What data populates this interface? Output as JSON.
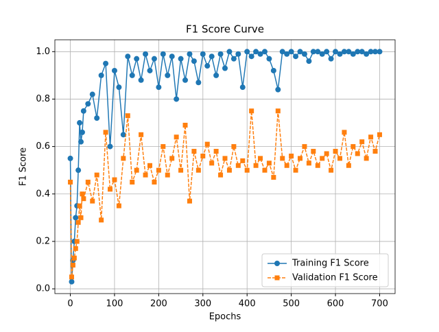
{
  "chart_data": {
    "type": "line",
    "title": "F1 Score Curve",
    "xlabel": "Epochs",
    "ylabel": "F1 Score",
    "x": [
      0,
      3,
      6,
      9,
      12,
      15,
      18,
      21,
      24,
      27,
      30,
      40,
      50,
      60,
      70,
      80,
      90,
      100,
      110,
      120,
      130,
      140,
      150,
      160,
      170,
      180,
      190,
      200,
      210,
      220,
      230,
      240,
      250,
      260,
      270,
      280,
      290,
      300,
      310,
      320,
      330,
      340,
      350,
      360,
      370,
      380,
      390,
      400,
      410,
      420,
      430,
      440,
      450,
      460,
      470,
      480,
      490,
      500,
      510,
      520,
      530,
      540,
      550,
      560,
      570,
      580,
      590,
      600,
      610,
      620,
      630,
      640,
      650,
      660,
      670,
      680,
      690,
      700
    ],
    "series": [
      {
        "name": "Training F1 Score",
        "color": "#1f77b4",
        "marker": "circle",
        "dashed": false,
        "values": [
          0.55,
          0.03,
          0.12,
          0.2,
          0.3,
          0.35,
          0.5,
          0.7,
          0.62,
          0.66,
          0.75,
          0.78,
          0.82,
          0.72,
          0.9,
          0.95,
          0.6,
          0.92,
          0.85,
          0.65,
          0.98,
          0.9,
          0.97,
          0.88,
          0.99,
          0.92,
          0.97,
          0.85,
          0.99,
          0.9,
          0.98,
          0.8,
          0.97,
          0.88,
          0.99,
          0.96,
          0.87,
          0.99,
          0.94,
          0.98,
          0.9,
          0.99,
          0.93,
          1.0,
          0.97,
          0.99,
          0.85,
          1.0,
          0.98,
          1.0,
          0.99,
          1.0,
          0.97,
          0.92,
          0.84,
          1.0,
          0.99,
          1.0,
          0.98,
          1.0,
          0.99,
          0.96,
          1.0,
          1.0,
          0.99,
          1.0,
          0.97,
          1.0,
          0.99,
          1.0,
          1.0,
          0.99,
          1.0,
          1.0,
          0.99,
          1.0,
          1.0,
          1.0
        ]
      },
      {
        "name": "Validation F1 Score",
        "color": "#ff7f0e",
        "marker": "square",
        "dashed": true,
        "values": [
          0.45,
          0.05,
          0.1,
          0.13,
          0.17,
          0.2,
          0.28,
          0.35,
          0.3,
          0.4,
          0.38,
          0.45,
          0.37,
          0.48,
          0.29,
          0.66,
          0.42,
          0.46,
          0.35,
          0.55,
          0.73,
          0.45,
          0.5,
          0.65,
          0.48,
          0.52,
          0.45,
          0.5,
          0.6,
          0.48,
          0.55,
          0.64,
          0.5,
          0.69,
          0.37,
          0.58,
          0.5,
          0.56,
          0.61,
          0.53,
          0.58,
          0.48,
          0.55,
          0.5,
          0.6,
          0.52,
          0.54,
          0.5,
          0.75,
          0.52,
          0.55,
          0.5,
          0.53,
          0.47,
          0.75,
          0.55,
          0.52,
          0.56,
          0.5,
          0.55,
          0.6,
          0.53,
          0.58,
          0.52,
          0.55,
          0.57,
          0.5,
          0.58,
          0.55,
          0.66,
          0.52,
          0.6,
          0.57,
          0.62,
          0.55,
          0.64,
          0.58,
          0.65
        ]
      }
    ],
    "xlim": [
      -35,
      735
    ],
    "ylim": [
      -0.02,
      1.05
    ],
    "xticks": [
      0,
      100,
      200,
      300,
      400,
      500,
      600,
      700
    ],
    "yticks": [
      {
        "value": 0,
        "label": "0.0"
      },
      0.2,
      0.4,
      0.6,
      0.8,
      {
        "value": 1,
        "label": "1.0"
      }
    ],
    "grid": true,
    "legend": "lower right"
  }
}
